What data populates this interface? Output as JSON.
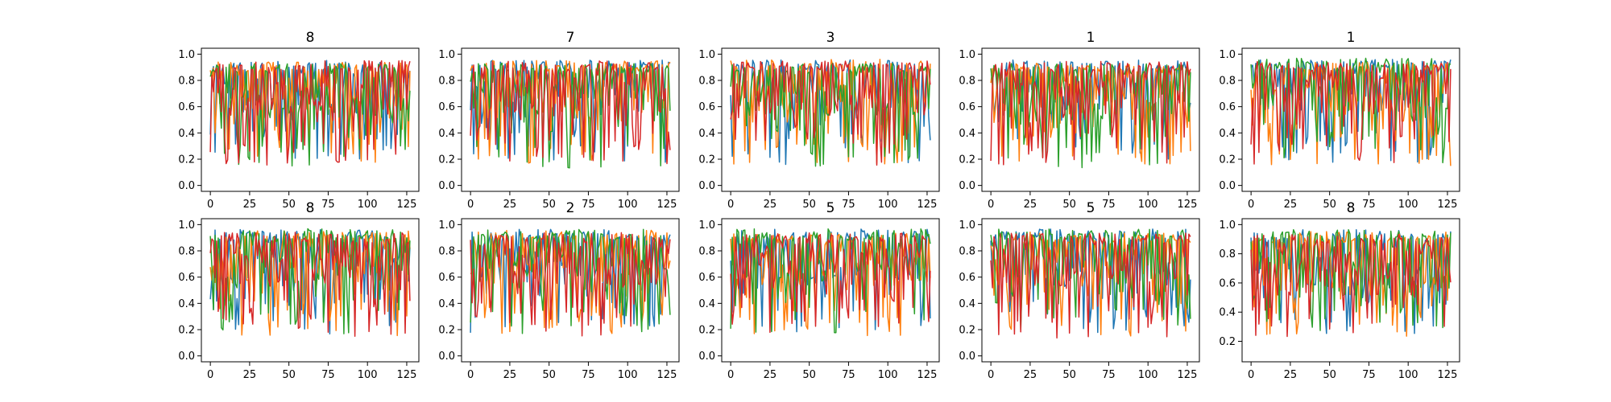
{
  "colors": {
    "series": [
      "#1f77b4",
      "#ff7f0e",
      "#2ca02c",
      "#d62728"
    ],
    "axis": "#000000",
    "background": "#ffffff"
  },
  "chart_data": [
    {
      "type": "line",
      "title": "8",
      "x_range": [
        0,
        127
      ],
      "xticks": [
        "0",
        "25",
        "50",
        "75",
        "100",
        "125"
      ],
      "ylim": [
        0,
        1
      ],
      "yticks": [
        "0.0",
        "0.2",
        "0.4",
        "0.6",
        "0.8",
        "1.0"
      ],
      "series_count": 4,
      "sample_count": 128,
      "grid": false,
      "legend": "none"
    },
    {
      "type": "line",
      "title": "7",
      "x_range": [
        0,
        127
      ],
      "xticks": [
        "0",
        "25",
        "50",
        "75",
        "100",
        "125"
      ],
      "ylim": [
        0,
        1
      ],
      "yticks": [
        "0.0",
        "0.2",
        "0.4",
        "0.6",
        "0.8",
        "1.0"
      ],
      "series_count": 4,
      "sample_count": 128,
      "grid": false,
      "legend": "none"
    },
    {
      "type": "line",
      "title": "3",
      "x_range": [
        0,
        127
      ],
      "xticks": [
        "0",
        "25",
        "50",
        "75",
        "100",
        "125"
      ],
      "ylim": [
        0,
        1
      ],
      "yticks": [
        "0.0",
        "0.2",
        "0.4",
        "0.6",
        "0.8",
        "1.0"
      ],
      "series_count": 4,
      "sample_count": 128,
      "grid": false,
      "legend": "none"
    },
    {
      "type": "line",
      "title": "1",
      "x_range": [
        0,
        127
      ],
      "xticks": [
        "0",
        "25",
        "50",
        "75",
        "100",
        "125"
      ],
      "ylim": [
        0,
        1
      ],
      "yticks": [
        "0.0",
        "0.2",
        "0.4",
        "0.6",
        "0.8",
        "1.0"
      ],
      "series_count": 4,
      "sample_count": 128,
      "grid": false,
      "legend": "none"
    },
    {
      "type": "line",
      "title": "1",
      "x_range": [
        0,
        127
      ],
      "xticks": [
        "0",
        "25",
        "50",
        "75",
        "100",
        "125"
      ],
      "ylim": [
        0,
        1
      ],
      "yticks": [
        "0.0",
        "0.2",
        "0.4",
        "0.6",
        "0.8",
        "1.0"
      ],
      "series_count": 4,
      "sample_count": 128,
      "grid": false,
      "legend": "none"
    },
    {
      "type": "line",
      "title": "8",
      "x_range": [
        0,
        127
      ],
      "xticks": [
        "0",
        "25",
        "50",
        "75",
        "100",
        "125"
      ],
      "ylim": [
        0,
        1
      ],
      "yticks": [
        "0.0",
        "0.2",
        "0.4",
        "0.6",
        "0.8",
        "1.0"
      ],
      "series_count": 4,
      "sample_count": 128,
      "grid": false,
      "legend": "none"
    },
    {
      "type": "line",
      "title": "2",
      "x_range": [
        0,
        127
      ],
      "xticks": [
        "0",
        "25",
        "50",
        "75",
        "100",
        "125"
      ],
      "ylim": [
        0,
        1
      ],
      "yticks": [
        "0.0",
        "0.2",
        "0.4",
        "0.6",
        "0.8",
        "1.0"
      ],
      "series_count": 4,
      "sample_count": 128,
      "grid": false,
      "legend": "none"
    },
    {
      "type": "line",
      "title": "5",
      "x_range": [
        0,
        127
      ],
      "xticks": [
        "0",
        "25",
        "50",
        "75",
        "100",
        "125"
      ],
      "ylim": [
        0,
        1
      ],
      "yticks": [
        "0.0",
        "0.2",
        "0.4",
        "0.6",
        "0.8",
        "1.0"
      ],
      "series_count": 4,
      "sample_count": 128,
      "grid": false,
      "legend": "none"
    },
    {
      "type": "line",
      "title": "5",
      "x_range": [
        0,
        127
      ],
      "xticks": [
        "0",
        "25",
        "50",
        "75",
        "100",
        "125"
      ],
      "ylim": [
        0,
        1
      ],
      "yticks": [
        "0.0",
        "0.2",
        "0.4",
        "0.6",
        "0.8",
        "1.0"
      ],
      "series_count": 4,
      "sample_count": 128,
      "grid": false,
      "legend": "none"
    },
    {
      "type": "line",
      "title": "8",
      "x_range": [
        0,
        127
      ],
      "xticks": [
        "0",
        "25",
        "50",
        "75",
        "100",
        "125"
      ],
      "ylim": [
        0.1,
        1
      ],
      "yticks": [
        "0.2",
        "0.4",
        "0.6",
        "0.8",
        "1.0"
      ],
      "series_count": 4,
      "sample_count": 128,
      "grid": false,
      "legend": "none"
    }
  ]
}
